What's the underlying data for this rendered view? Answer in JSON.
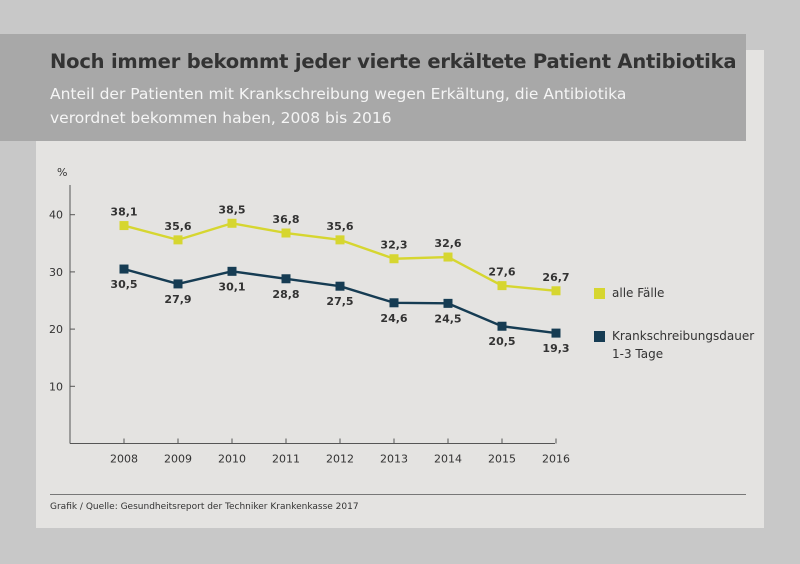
{
  "title": "Noch immer bekommt jeder vierte erkältete Patient Antibiotika",
  "subtitle": "Anteil der Patienten mit Krankschreibung wegen Erkältung, die Antibiotika verordnet bekommen haben, 2008 bis 2016",
  "source": "Grafik / Quelle: Gesundheitsreport der Techniker Krankenkasse 2017",
  "colors": {
    "series1": "#d6d630",
    "series2": "#163c53",
    "axis": "#555555"
  },
  "chart_data": {
    "type": "line",
    "unit_label": "%",
    "x": [
      "2008",
      "2009",
      "2010",
      "2011",
      "2012",
      "2013",
      "2014",
      "2015",
      "2016"
    ],
    "y_ticks": [
      10,
      20,
      30,
      40
    ],
    "ylim": [
      0,
      45
    ],
    "series": [
      {
        "name": "alle Fälle",
        "values": [
          38.1,
          35.6,
          38.5,
          36.8,
          35.6,
          32.3,
          32.6,
          27.6,
          26.7
        ],
        "labels": [
          "38,1",
          "35,6",
          "38,5",
          "36,8",
          "35,6",
          "32,3",
          "32,6",
          "27,6",
          "26,7"
        ]
      },
      {
        "name": "Krankschreibungsdauer 1-3 Tage",
        "name_lines": [
          "Krankschreibungsdauer",
          "1-3 Tage"
        ],
        "values": [
          30.5,
          27.9,
          30.1,
          28.8,
          27.5,
          24.6,
          24.5,
          20.5,
          19.3
        ],
        "labels": [
          "30,5",
          "27,9",
          "30,1",
          "28,8",
          "27,5",
          "24,6",
          "24,5",
          "20,5",
          "19,3"
        ]
      }
    ]
  }
}
